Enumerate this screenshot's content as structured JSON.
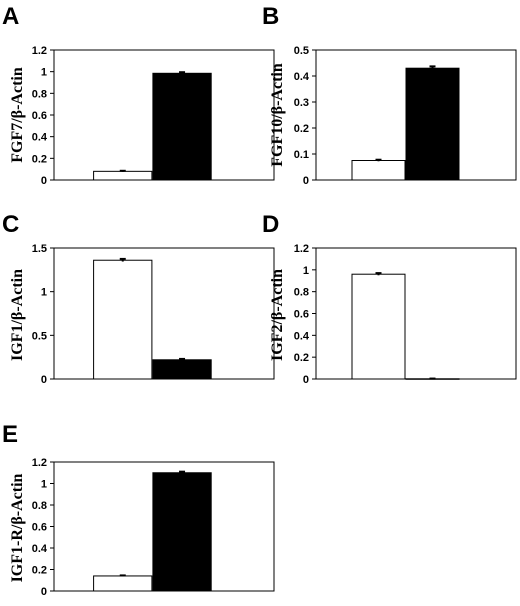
{
  "figure": {
    "panels": [
      "A",
      "B",
      "C",
      "D",
      "E"
    ]
  },
  "chart_data": [
    {
      "panel": "A",
      "type": "bar",
      "ylabel": "FGF7/β-Actin",
      "ylim": [
        0,
        1.2
      ],
      "yticks": [
        "0",
        "0.2",
        "0.4",
        "0.6",
        "0.8",
        "1",
        "1.2"
      ],
      "ytick_values": [
        0,
        0.2,
        0.4,
        0.6,
        0.8,
        1.0,
        1.2
      ],
      "series": [
        {
          "fill": "#ffffff",
          "value": 0.08,
          "error": 0.005
        },
        {
          "fill": "#000000",
          "value": 0.985,
          "error": 0.01
        }
      ]
    },
    {
      "panel": "B",
      "type": "bar",
      "ylabel": "FGF10/β-Actin",
      "ylim": [
        0,
        0.5
      ],
      "yticks": [
        "0",
        "0.1",
        "0.2",
        "0.3",
        "0.4",
        "0.5"
      ],
      "ytick_values": [
        0,
        0.1,
        0.2,
        0.3,
        0.4,
        0.5
      ],
      "series": [
        {
          "fill": "#ffffff",
          "value": 0.075,
          "error": 0.003
        },
        {
          "fill": "#000000",
          "value": 0.43,
          "error": 0.007
        }
      ]
    },
    {
      "panel": "C",
      "type": "bar",
      "ylabel": "IGF1/β-Actin",
      "ylim": [
        0,
        1.5
      ],
      "yticks": [
        "0",
        "0.5",
        "1",
        "1.5"
      ],
      "ytick_values": [
        0,
        0.5,
        1.0,
        1.5
      ],
      "series": [
        {
          "fill": "#ffffff",
          "value": 1.36,
          "error": 0.015
        },
        {
          "fill": "#000000",
          "value": 0.22,
          "error": 0.01
        }
      ]
    },
    {
      "panel": "D",
      "type": "bar",
      "ylabel": "IGF2/β-Actin",
      "ylim": [
        0,
        1.2
      ],
      "yticks": [
        "0",
        "0.2",
        "0.4",
        "0.6",
        "0.8",
        "1",
        "1.2"
      ],
      "ytick_values": [
        0,
        0.2,
        0.4,
        0.6,
        0.8,
        1.0,
        1.2
      ],
      "series": [
        {
          "fill": "#ffffff",
          "value": 0.96,
          "error": 0.01
        },
        {
          "fill": "#000000",
          "value": 0.002,
          "error": 0.002
        }
      ]
    },
    {
      "panel": "E",
      "type": "bar",
      "ylabel": "IGF1-R/β-Actin",
      "ylim": [
        0,
        1.2
      ],
      "yticks": [
        "0",
        "0.2",
        "0.4",
        "0.6",
        "0.8",
        "1",
        "1.2"
      ],
      "ytick_values": [
        0,
        0.2,
        0.4,
        0.6,
        0.8,
        1.0,
        1.2
      ],
      "series": [
        {
          "fill": "#ffffff",
          "value": 0.14,
          "error": 0.005
        },
        {
          "fill": "#000000",
          "value": 1.1,
          "error": 0.01
        }
      ]
    }
  ]
}
